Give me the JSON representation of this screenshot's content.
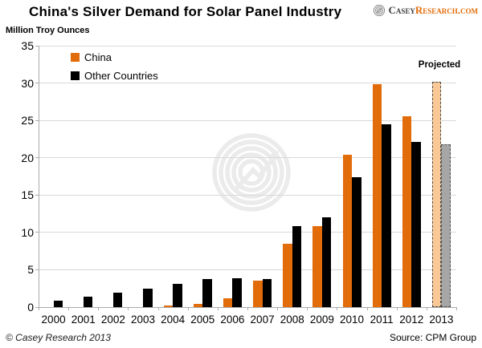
{
  "header": {
    "title": "China's Silver Demand for Solar Panel Industry",
    "y_axis_title": "Million Troy Ounces"
  },
  "logo": {
    "brand_primary": "Casey",
    "brand_secondary": "Research.com"
  },
  "annotations": {
    "projected": "Projected"
  },
  "footer": {
    "copyright": "© Casey Research 2013",
    "source": "Source: CPM Group"
  },
  "chart_data": {
    "type": "bar",
    "title": "China's Silver Demand for Solar Panel Industry",
    "ylabel": "Million Troy Ounces",
    "xlabel": "",
    "categories": [
      "2000",
      "2001",
      "2002",
      "2003",
      "2004",
      "2005",
      "2006",
      "2007",
      "2008",
      "2009",
      "2010",
      "2011",
      "2012",
      "2013"
    ],
    "series": [
      {
        "name": "China",
        "color": "#e36c0a",
        "values": [
          0,
          0,
          0,
          0,
          0.2,
          0.4,
          1.2,
          3.5,
          8.5,
          10.8,
          20.4,
          29.8,
          25.5,
          30.2
        ]
      },
      {
        "name": "Other Countries",
        "color": "#000000",
        "values": [
          0.9,
          1.4,
          1.9,
          2.5,
          3.1,
          3.8,
          3.9,
          3.8,
          10.8,
          12.0,
          17.4,
          24.5,
          22.1,
          21.8
        ]
      }
    ],
    "projected": {
      "categories": [
        "2013"
      ],
      "label": "Projected",
      "fills": [
        "#fac896",
        "#a6a6a6"
      ],
      "border_style": "dashed"
    },
    "ylim": [
      0,
      35
    ],
    "ytick_step": 5,
    "grid": "horizontal",
    "legend_position": "top-left",
    "source": "CPM Group"
  }
}
